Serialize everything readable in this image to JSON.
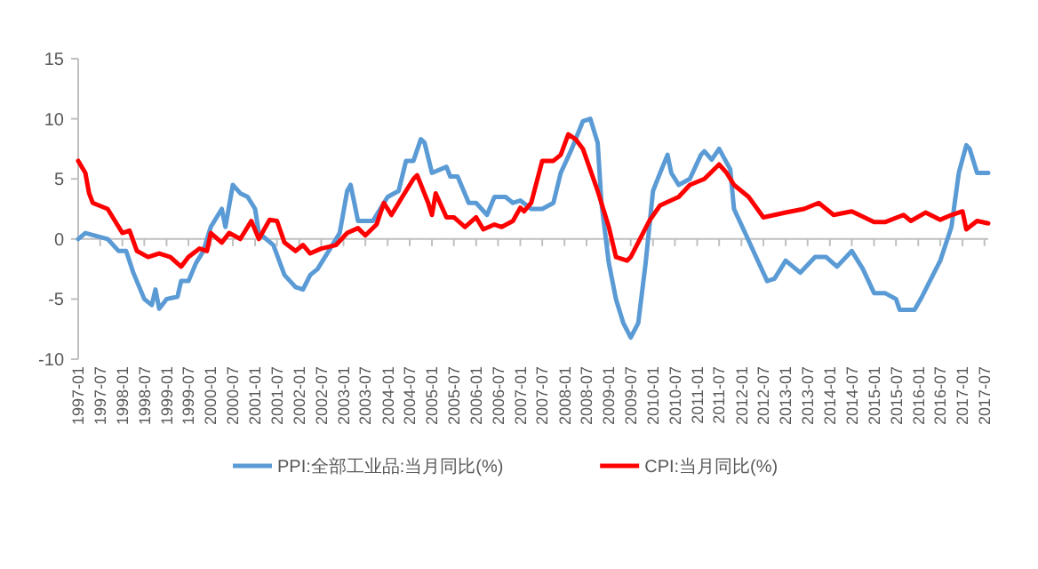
{
  "chart_data": {
    "type": "line",
    "xlim": [
      "1997-01",
      "2017-08"
    ],
    "ylim": [
      -10,
      15
    ],
    "yticks": [
      -10,
      -5,
      0,
      5,
      10,
      15
    ],
    "xticks": [
      "1997-01",
      "1997-07",
      "1998-01",
      "1998-07",
      "1999-01",
      "1999-07",
      "2000-01",
      "2000-07",
      "2001-01",
      "2001-07",
      "2002-01",
      "2002-07",
      "2003-01",
      "2003-07",
      "2004-01",
      "2004-07",
      "2005-01",
      "2005-07",
      "2006-01",
      "2006-07",
      "2007-01",
      "2007-07",
      "2008-01",
      "2008-07",
      "2009-01",
      "2009-07",
      "2010-01",
      "2010-07",
      "2011-01",
      "2011-07",
      "2012-01",
      "2012-07",
      "2013-01",
      "2013-07",
      "2014-01",
      "2014-07",
      "2015-01",
      "2015-07",
      "2016-01",
      "2016-07",
      "2017-01",
      "2017-07"
    ],
    "legend": "bottom",
    "marker": "none",
    "line_style": "solid",
    "series": [
      {
        "name": "PPI:全部工业品:当月同比(%)",
        "color": "#5b9bd5",
        "x": [
          "1997-01",
          "1997-03",
          "1997-09",
          "1997-12",
          "1998-02",
          "1998-04",
          "1998-07",
          "1998-09",
          "1998-10",
          "1998-11",
          "1999-01",
          "1999-04",
          "1999-05",
          "1999-07",
          "1999-09",
          "1999-11",
          "2000-01",
          "2000-04",
          "2000-05",
          "2000-07",
          "2000-09",
          "2000-11",
          "2001-01",
          "2001-02",
          "2001-06",
          "2001-09",
          "2001-12",
          "2002-02",
          "2002-04",
          "2002-06",
          "2002-09",
          "2002-12",
          "2003-02",
          "2003-03",
          "2003-04",
          "2003-05",
          "2003-09",
          "2003-11",
          "2004-01",
          "2004-04",
          "2004-06",
          "2004-08",
          "2004-10",
          "2004-11",
          "2005-01",
          "2005-05",
          "2005-06",
          "2005-08",
          "2005-11",
          "2006-01",
          "2006-04",
          "2006-06",
          "2006-09",
          "2006-11",
          "2007-01",
          "2007-04",
          "2007-07",
          "2007-10",
          "2007-12",
          "2008-03",
          "2008-06",
          "2008-08",
          "2008-10",
          "2008-11",
          "2009-01",
          "2009-03",
          "2009-05",
          "2009-07",
          "2009-09",
          "2009-11",
          "2010-01",
          "2010-03",
          "2010-05",
          "2010-06",
          "2010-08",
          "2010-11",
          "2011-02",
          "2011-03",
          "2011-05",
          "2011-07",
          "2011-10",
          "2011-11",
          "2012-02",
          "2012-05",
          "2012-08",
          "2012-10",
          "2013-01",
          "2013-05",
          "2013-09",
          "2013-12",
          "2014-03",
          "2014-07",
          "2014-10",
          "2015-01",
          "2015-04",
          "2015-07",
          "2015-08",
          "2015-12",
          "2016-02",
          "2016-05",
          "2016-07",
          "2016-10",
          "2016-12",
          "2017-02",
          "2017-03",
          "2017-05",
          "2017-08"
        ],
        "values": [
          0,
          0.5,
          0,
          -1,
          -1,
          -2.8,
          -5,
          -5.5,
          -4.2,
          -5.8,
          -5,
          -4.8,
          -3.5,
          -3.5,
          -2,
          -1,
          1,
          2.5,
          1,
          4.5,
          3.8,
          3.5,
          2.5,
          0.5,
          -0.5,
          -3,
          -4,
          -4.2,
          -3,
          -2.5,
          -1,
          0.5,
          4,
          4.5,
          3,
          1.5,
          1.5,
          2.5,
          3.5,
          4,
          6.5,
          6.5,
          8.3,
          8,
          5.5,
          6,
          5.2,
          5.2,
          3,
          3,
          2,
          3.5,
          3.5,
          3,
          3.2,
          2.5,
          2.5,
          3,
          5.5,
          7.5,
          9.8,
          10,
          8,
          3,
          -2,
          -5,
          -7,
          -8.2,
          -7,
          -2,
          4,
          5.5,
          7,
          5.5,
          4.5,
          5,
          7,
          7.3,
          6.6,
          7.5,
          5.8,
          2.5,
          0.5,
          -1.5,
          -3.5,
          -3.3,
          -1.8,
          -2.8,
          -1.5,
          -1.5,
          -2.3,
          -1,
          -2.5,
          -4.5,
          -4.5,
          -5,
          -5.9,
          -5.9,
          -4.8,
          -3,
          -1.8,
          1,
          5.5,
          7.8,
          7.5,
          5.5,
          5.5
        ]
      },
      {
        "name": "CPI:当月同比(%)",
        "color": "#ff0000",
        "x": [
          "1997-01",
          "1997-03",
          "1997-04",
          "1997-05",
          "1997-09",
          "1997-11",
          "1998-01",
          "1998-03",
          "1998-05",
          "1998-08",
          "1998-11",
          "1999-02",
          "1999-05",
          "1999-07",
          "1999-10",
          "1999-12",
          "2000-01",
          "2000-04",
          "2000-06",
          "2000-09",
          "2000-12",
          "2001-02",
          "2001-05",
          "2001-07",
          "2001-09",
          "2001-12",
          "2002-02",
          "2002-04",
          "2002-07",
          "2002-11",
          "2003-02",
          "2003-05",
          "2003-07",
          "2003-10",
          "2003-12",
          "2004-02",
          "2004-05",
          "2004-08",
          "2004-09",
          "2004-12",
          "2005-01",
          "2005-02",
          "2005-05",
          "2005-07",
          "2005-10",
          "2006-01",
          "2006-03",
          "2006-06",
          "2006-08",
          "2006-11",
          "2007-01",
          "2007-02",
          "2007-04",
          "2007-07",
          "2007-10",
          "2007-12",
          "2008-02",
          "2008-04",
          "2008-06",
          "2008-10",
          "2009-01",
          "2009-03",
          "2009-06",
          "2009-07",
          "2009-12",
          "2010-03",
          "2010-08",
          "2010-11",
          "2011-03",
          "2011-07",
          "2011-09",
          "2011-11",
          "2012-03",
          "2012-07",
          "2012-10",
          "2013-01",
          "2013-06",
          "2013-10",
          "2014-02",
          "2014-07",
          "2015-01",
          "2015-04",
          "2015-09",
          "2015-11",
          "2016-03",
          "2016-07",
          "2016-10",
          "2017-01",
          "2017-02",
          "2017-05",
          "2017-08"
        ],
        "values": [
          6.5,
          5.5,
          3.8,
          3,
          2.5,
          1.5,
          0.5,
          0.7,
          -1,
          -1.5,
          -1.2,
          -1.5,
          -2.3,
          -1.5,
          -0.8,
          -1,
          0.5,
          -0.3,
          0.5,
          0,
          1.5,
          0,
          1.6,
          1.5,
          -0.3,
          -1,
          -0.5,
          -1.2,
          -0.8,
          -0.5,
          0.5,
          0.9,
          0.3,
          1.2,
          3,
          2,
          3.5,
          5,
          5.3,
          3,
          2,
          3.8,
          1.8,
          1.8,
          1,
          1.8,
          0.8,
          1.2,
          1,
          1.5,
          2.6,
          2.3,
          3,
          6.5,
          6.5,
          7,
          8.7,
          8.3,
          7.5,
          4,
          1,
          -1.5,
          -1.8,
          -1.5,
          1.5,
          2.8,
          3.5,
          4.5,
          5,
          6.2,
          5.5,
          4.5,
          3.5,
          1.8,
          2,
          2.2,
          2.5,
          3,
          2,
          2.3,
          1.4,
          1.4,
          2,
          1.5,
          2.2,
          1.6,
          2,
          2.3,
          0.8,
          1.5,
          1.3
        ]
      }
    ]
  }
}
